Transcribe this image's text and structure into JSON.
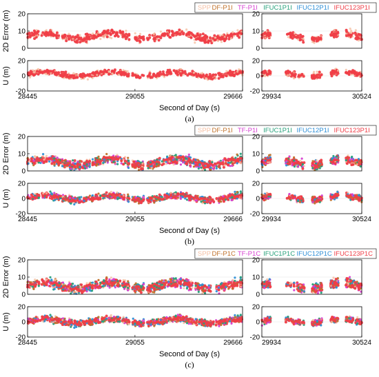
{
  "chart_data": [
    {
      "type": "scatter",
      "panel": "(a)",
      "caption": "(a)",
      "legend_position": "top-right",
      "legend": [
        "SPP",
        "DF-P1I",
        "TF-P1I",
        "IFUC1P1I",
        "IFUC12P1I",
        "IFUC123P1I"
      ],
      "xlabel": "Second of Day (s)",
      "x_ticks_left": [
        "28445",
        "29055",
        "29666"
      ],
      "x_ticks_right": [
        "29934",
        "30524"
      ],
      "xlim_left": [
        28445,
        29666
      ],
      "xlim_right": [
        29934,
        30524
      ],
      "subplots": [
        {
          "ylabel": "2D Error (m)",
          "ylim": [
            0,
            20
          ],
          "yticks": [
            "0",
            "10",
            "20"
          ],
          "base": 7,
          "spread": 3,
          "dominant": "IFUC123P1I"
        },
        {
          "ylabel": "U (m)",
          "ylim": [
            -20,
            20
          ],
          "yticks": [
            "-20",
            "0",
            "20"
          ],
          "base": 2,
          "spread": 5,
          "dominant": "IFUC123P1I"
        }
      ]
    },
    {
      "type": "scatter",
      "panel": "(b)",
      "caption": "(b)",
      "legend_position": "top-right",
      "legend": [
        "SPP",
        "DF-P1I",
        "TF-P1I",
        "IFUC1P1I",
        "IFUC12P1I",
        "IFUC123P1I"
      ],
      "xlabel": "Second of Day (s)",
      "x_ticks_left": [
        "28445",
        "29055",
        "29666"
      ],
      "x_ticks_right": [
        "29934",
        "30524"
      ],
      "xlim_left": [
        28445,
        29666
      ],
      "xlim_right": [
        29934,
        30524
      ],
      "subplots": [
        {
          "ylabel": "2D Error (m)",
          "ylim": [
            0,
            20
          ],
          "yticks": [
            "0",
            "10",
            "20"
          ],
          "base": 5,
          "spread": 3,
          "dominant": "IFUC123P1I"
        },
        {
          "ylabel": "U (m)",
          "ylim": [
            -20,
            20
          ],
          "yticks": [
            "-20",
            "0",
            "20"
          ],
          "base": 1,
          "spread": 5,
          "dominant": "IFUC123P1I"
        }
      ]
    },
    {
      "type": "scatter",
      "panel": "(c)",
      "caption": "(c)",
      "legend_position": "top-right",
      "legend": [
        "SPP",
        "DF-P1C",
        "TF-P1C",
        "IFUC1P1C",
        "IFUC12P1C",
        "IFUC123P1C"
      ],
      "xlabel": "Second of Day (s)",
      "x_ticks_left": [
        "28445",
        "29055",
        "29666"
      ],
      "x_ticks_right": [
        "29934",
        "30524"
      ],
      "xlim_left": [
        28445,
        29666
      ],
      "xlim_right": [
        29934,
        30524
      ],
      "subplots": [
        {
          "ylabel": "2D Error (m)",
          "ylim": [
            0,
            20
          ],
          "yticks": [
            "0",
            "10",
            "20"
          ],
          "base": 5,
          "spread": 3,
          "dominant": "IFUC123P1C"
        },
        {
          "ylabel": "U (m)",
          "ylim": [
            -20,
            20
          ],
          "yticks": [
            "-20",
            "0",
            "20"
          ],
          "base": 1,
          "spread": 5,
          "dominant": "IFUC123P1C"
        }
      ]
    }
  ],
  "series_colors": [
    "#f5bfa3",
    "#c0712a",
    "#d63fd0",
    "#26a07a",
    "#2f8fd6",
    "#ef3e47"
  ],
  "right_segments": [
    [
      29934,
      29985
    ],
    [
      30075,
      30185
    ],
    [
      30230,
      30290
    ],
    [
      30340,
      30385
    ],
    [
      30430,
      30524
    ]
  ],
  "gaps_left": [
    [
      29025,
      29040
    ],
    [
      29105,
      29125
    ]
  ]
}
